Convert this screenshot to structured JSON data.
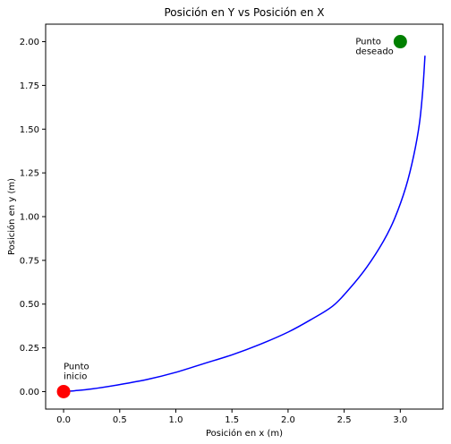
{
  "chart_data": {
    "type": "line",
    "title": "Posición en Y vs Posición en X",
    "xlabel": "Posición en x (m)",
    "ylabel": "Posición en y (m)",
    "xlim": [
      -0.16,
      3.38
    ],
    "ylim": [
      -0.1,
      2.1
    ],
    "xticks": [
      "0.0",
      "0.5",
      "1.0",
      "1.5",
      "2.0",
      "2.5",
      "3.0"
    ],
    "xtick_values": [
      0.0,
      0.5,
      1.0,
      1.5,
      2.0,
      2.5,
      3.0
    ],
    "yticks": [
      "0.00",
      "0.25",
      "0.50",
      "0.75",
      "1.00",
      "1.25",
      "1.50",
      "1.75",
      "2.00"
    ],
    "ytick_values": [
      0.0,
      0.25,
      0.5,
      0.75,
      1.0,
      1.25,
      1.5,
      1.75,
      2.0
    ],
    "grid": false,
    "series": [
      {
        "color": "#0000ff",
        "x": [
          0.0,
          0.1,
          0.25,
          0.5,
          0.75,
          1.0,
          1.25,
          1.5,
          1.75,
          2.0,
          2.2,
          2.4,
          2.55,
          2.7,
          2.85,
          2.95,
          3.05,
          3.12,
          3.17,
          3.2,
          3.22
        ],
        "y": [
          0.0,
          0.005,
          0.015,
          0.04,
          0.07,
          0.11,
          0.16,
          0.21,
          0.27,
          0.34,
          0.41,
          0.49,
          0.59,
          0.71,
          0.86,
          0.99,
          1.17,
          1.35,
          1.53,
          1.72,
          1.92
        ]
      }
    ],
    "points": [
      {
        "label": "Punto\ninicio",
        "label_lines": [
          "Punto",
          "inicio"
        ],
        "x": 0.0,
        "y": 0.0,
        "color": "#ff0000"
      },
      {
        "label": "Punto\ndeseado",
        "label_lines": [
          "Punto",
          "deseado"
        ],
        "x": 3.0,
        "y": 2.0,
        "color": "#008000"
      }
    ]
  }
}
